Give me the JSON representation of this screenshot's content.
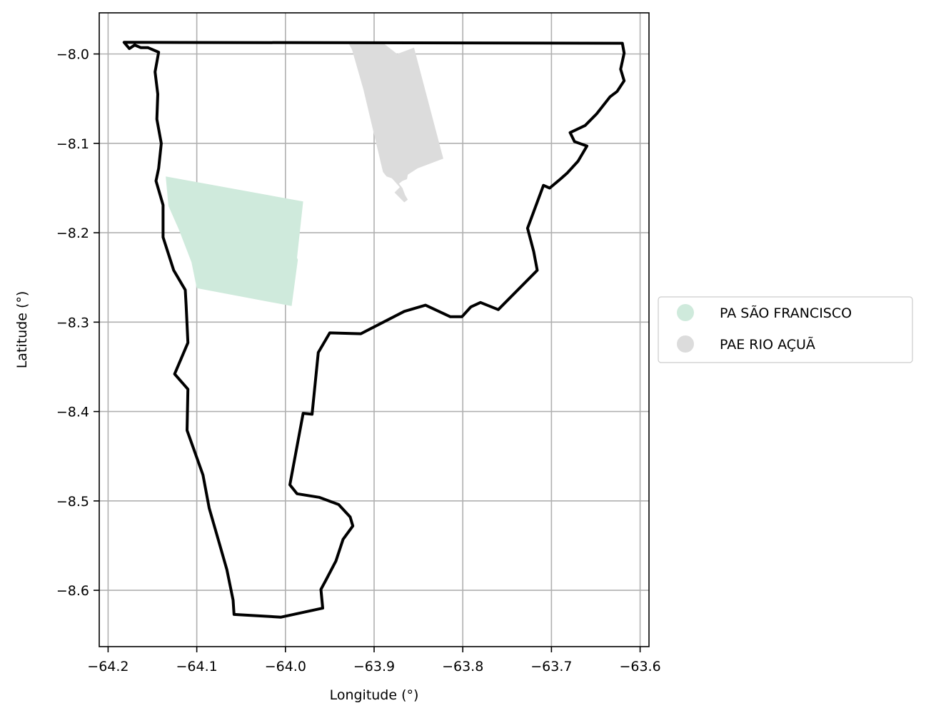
{
  "chart_data": {
    "type": "map",
    "xlabel": "Longitude (°)",
    "ylabel": "Latitude (°)",
    "xlim": [
      -64.21,
      -63.59
    ],
    "ylim": [
      -8.663,
      -7.954
    ],
    "grid": true,
    "xticks": [
      {
        "value": -64.2,
        "label": "−64.2"
      },
      {
        "value": -64.1,
        "label": "−64.1"
      },
      {
        "value": -64.0,
        "label": "−64.0"
      },
      {
        "value": -63.9,
        "label": "−63.9"
      },
      {
        "value": -63.8,
        "label": "−63.8"
      },
      {
        "value": -63.7,
        "label": "−63.7"
      },
      {
        "value": -63.6,
        "label": "−63.6"
      }
    ],
    "yticks": [
      {
        "value": -8.0,
        "label": "−8.0"
      },
      {
        "value": -8.1,
        "label": "−8.1"
      },
      {
        "value": -8.2,
        "label": "−8.2"
      },
      {
        "value": -8.3,
        "label": "−8.3"
      },
      {
        "value": -8.4,
        "label": "−8.4"
      },
      {
        "value": -8.5,
        "label": "−8.5"
      },
      {
        "value": -8.6,
        "label": "−8.6"
      }
    ],
    "legend": {
      "placement": "center-right-outside",
      "entries": [
        {
          "label": "PA SÃO FRANCISCO",
          "color": "#cfeadc"
        },
        {
          "label": "PAE RIO AÇUÃ",
          "color": "#dcdcdc"
        }
      ]
    },
    "areas": [
      {
        "name": "PA SÃO FRANCISCO",
        "color": "#cfeadc",
        "polygon": [
          [
            -64.135,
            -8.137
          ],
          [
            -63.98,
            -8.165
          ],
          [
            -63.987,
            -8.228
          ],
          [
            -63.986,
            -8.23
          ],
          [
            -63.993,
            -8.282
          ],
          [
            -64.1,
            -8.262
          ],
          [
            -64.106,
            -8.233
          ],
          [
            -64.12,
            -8.197
          ],
          [
            -64.132,
            -8.17
          ],
          [
            -64.135,
            -8.137
          ]
        ]
      },
      {
        "name": "PAE RIO AÇUÃ",
        "color": "#dcdcdc",
        "polygon": [
          [
            -63.93,
            -7.986
          ],
          [
            -63.892,
            -7.986
          ],
          [
            -63.874,
            -8.0
          ],
          [
            -63.855,
            -7.993
          ],
          [
            -63.822,
            -8.117
          ],
          [
            -63.851,
            -8.128
          ],
          [
            -63.862,
            -8.135
          ],
          [
            -63.863,
            -8.14
          ],
          [
            -63.868,
            -8.142
          ],
          [
            -63.872,
            -8.145
          ],
          [
            -63.868,
            -8.15
          ],
          [
            -63.865,
            -8.158
          ],
          [
            -63.862,
            -8.163
          ],
          [
            -63.866,
            -8.166
          ],
          [
            -63.877,
            -8.155
          ],
          [
            -63.871,
            -8.149
          ],
          [
            -63.88,
            -8.139
          ],
          [
            -63.886,
            -8.137
          ],
          [
            -63.89,
            -8.132
          ],
          [
            -63.912,
            -8.04
          ],
          [
            -63.925,
            -7.995
          ],
          [
            -63.93,
            -7.986
          ]
        ]
      }
    ],
    "boundary": {
      "color": "#000000",
      "polygon": [
        [
          -64.182,
          -7.987
        ],
        [
          -63.62,
          -7.988
        ],
        [
          -63.618,
          -7.999
        ],
        [
          -63.622,
          -8.017
        ],
        [
          -63.618,
          -8.03
        ],
        [
          -63.626,
          -8.042
        ],
        [
          -63.634,
          -8.048
        ],
        [
          -63.649,
          -8.067
        ],
        [
          -63.662,
          -8.08
        ],
        [
          -63.679,
          -8.088
        ],
        [
          -63.674,
          -8.098
        ],
        [
          -63.66,
          -8.103
        ],
        [
          -63.67,
          -8.12
        ],
        [
          -63.682,
          -8.133
        ],
        [
          -63.69,
          -8.14
        ],
        [
          -63.702,
          -8.15
        ],
        [
          -63.709,
          -8.147
        ],
        [
          -63.727,
          -8.195
        ],
        [
          -63.72,
          -8.221
        ],
        [
          -63.716,
          -8.242
        ],
        [
          -63.76,
          -8.286
        ],
        [
          -63.78,
          -8.278
        ],
        [
          -63.791,
          -8.283
        ],
        [
          -63.801,
          -8.294
        ],
        [
          -63.814,
          -8.294
        ],
        [
          -63.842,
          -8.281
        ],
        [
          -63.866,
          -8.288
        ],
        [
          -63.915,
          -8.313
        ],
        [
          -63.95,
          -8.312
        ],
        [
          -63.963,
          -8.334
        ],
        [
          -63.97,
          -8.403
        ],
        [
          -63.98,
          -8.402
        ],
        [
          -63.995,
          -8.482
        ],
        [
          -63.987,
          -8.492
        ],
        [
          -63.962,
          -8.496
        ],
        [
          -63.94,
          -8.504
        ],
        [
          -63.927,
          -8.518
        ],
        [
          -63.924,
          -8.528
        ],
        [
          -63.935,
          -8.543
        ],
        [
          -63.943,
          -8.567
        ],
        [
          -63.954,
          -8.588
        ],
        [
          -63.96,
          -8.599
        ],
        [
          -63.958,
          -8.62
        ],
        [
          -64.005,
          -8.63
        ],
        [
          -64.058,
          -8.627
        ],
        [
          -64.059,
          -8.611
        ],
        [
          -64.066,
          -8.577
        ],
        [
          -64.075,
          -8.546
        ],
        [
          -64.086,
          -8.508
        ],
        [
          -64.093,
          -8.471
        ],
        [
          -64.111,
          -8.421
        ],
        [
          -64.11,
          -8.375
        ],
        [
          -64.125,
          -8.358
        ],
        [
          -64.11,
          -8.323
        ],
        [
          -64.112,
          -8.281
        ],
        [
          -64.113,
          -8.264
        ],
        [
          -64.126,
          -8.242
        ],
        [
          -64.138,
          -8.205
        ],
        [
          -64.138,
          -8.169
        ],
        [
          -64.146,
          -8.142
        ],
        [
          -64.143,
          -8.128
        ],
        [
          -64.14,
          -8.1
        ],
        [
          -64.145,
          -8.073
        ],
        [
          -64.144,
          -8.045
        ],
        [
          -64.147,
          -8.02
        ],
        [
          -64.143,
          -7.998
        ],
        [
          -64.155,
          -7.993
        ],
        [
          -64.163,
          -7.993
        ],
        [
          -64.17,
          -7.99
        ],
        [
          -64.176,
          -7.994
        ],
        [
          -64.182,
          -7.987
        ]
      ]
    }
  }
}
